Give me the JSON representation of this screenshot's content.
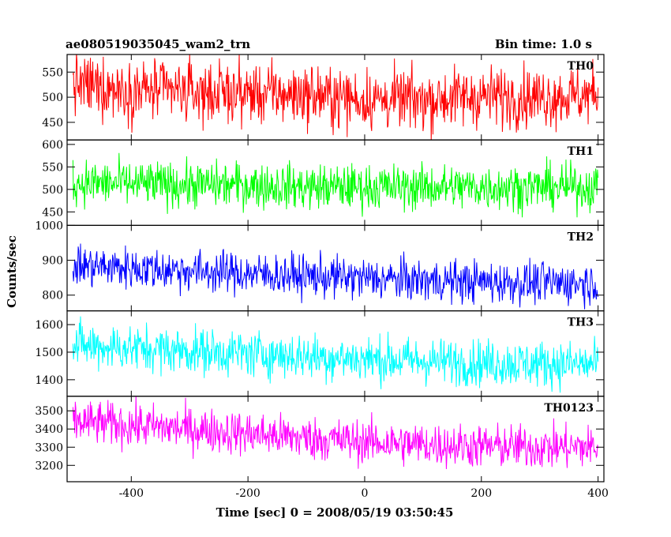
{
  "chart_data": {
    "type": "line",
    "title": "ae080519035045_wam2_trn",
    "bin_time_label": "Bin time: 1.0 s",
    "xlabel": "Time [sec] 0 = 2008/05/19 03:50:45",
    "ylabel": "Counts/sec",
    "xlim": [
      -510,
      410
    ],
    "x_range": [
      -500,
      400
    ],
    "x_ticks": [
      -400,
      -200,
      0,
      200,
      400
    ],
    "series": [
      {
        "name": "TH0",
        "color": "#ff0000",
        "ylim": [
          415,
          585
        ],
        "y_ticks": [
          450,
          500,
          550
        ],
        "points": [
          [
            -500,
            525
          ],
          [
            -400,
            515
          ],
          [
            -300,
            510
          ],
          [
            -200,
            508
          ],
          [
            -100,
            505
          ],
          [
            0,
            495
          ],
          [
            100,
            495
          ],
          [
            200,
            502
          ],
          [
            300,
            500
          ],
          [
            400,
            505
          ]
        ],
        "noise": 30
      },
      {
        "name": "TH1",
        "color": "#00ff00",
        "ylim": [
          420,
          610
        ],
        "y_ticks": [
          450,
          500,
          550,
          600
        ],
        "points": [
          [
            -500,
            515
          ],
          [
            -400,
            512
          ],
          [
            -300,
            510
          ],
          [
            -200,
            510
          ],
          [
            -100,
            505
          ],
          [
            0,
            505
          ],
          [
            100,
            505
          ],
          [
            200,
            505
          ],
          [
            300,
            505
          ],
          [
            400,
            505
          ]
        ],
        "noise": 25
      },
      {
        "name": "TH2",
        "color": "#0000ff",
        "ylim": [
          755,
          1000
        ],
        "y_ticks": [
          800,
          900,
          1000
        ],
        "points": [
          [
            -500,
            885
          ],
          [
            -400,
            878
          ],
          [
            -300,
            870
          ],
          [
            -200,
            862
          ],
          [
            -100,
            855
          ],
          [
            0,
            848
          ],
          [
            100,
            842
          ],
          [
            200,
            838
          ],
          [
            300,
            835
          ],
          [
            400,
            835
          ]
        ],
        "noise": 30
      },
      {
        "name": "TH3",
        "color": "#00ffff",
        "ylim": [
          1340,
          1650
        ],
        "y_ticks": [
          1400,
          1500,
          1600
        ],
        "points": [
          [
            -500,
            1525
          ],
          [
            -400,
            1515
          ],
          [
            -300,
            1505
          ],
          [
            -200,
            1495
          ],
          [
            -100,
            1485
          ],
          [
            0,
            1475
          ],
          [
            100,
            1468
          ],
          [
            200,
            1462
          ],
          [
            300,
            1458
          ],
          [
            400,
            1455
          ]
        ],
        "noise": 42
      },
      {
        "name": "TH0123",
        "color": "#ff00ff",
        "ylim": [
          3110,
          3580
        ],
        "y_ticks": [
          3200,
          3300,
          3400,
          3500
        ],
        "points": [
          [
            -500,
            3440
          ],
          [
            -400,
            3420
          ],
          [
            -300,
            3400
          ],
          [
            -200,
            3375
          ],
          [
            -100,
            3350
          ],
          [
            0,
            3330
          ],
          [
            100,
            3315
          ],
          [
            200,
            3305
          ],
          [
            300,
            3300
          ],
          [
            400,
            3300
          ]
        ],
        "noise": 60
      }
    ]
  }
}
